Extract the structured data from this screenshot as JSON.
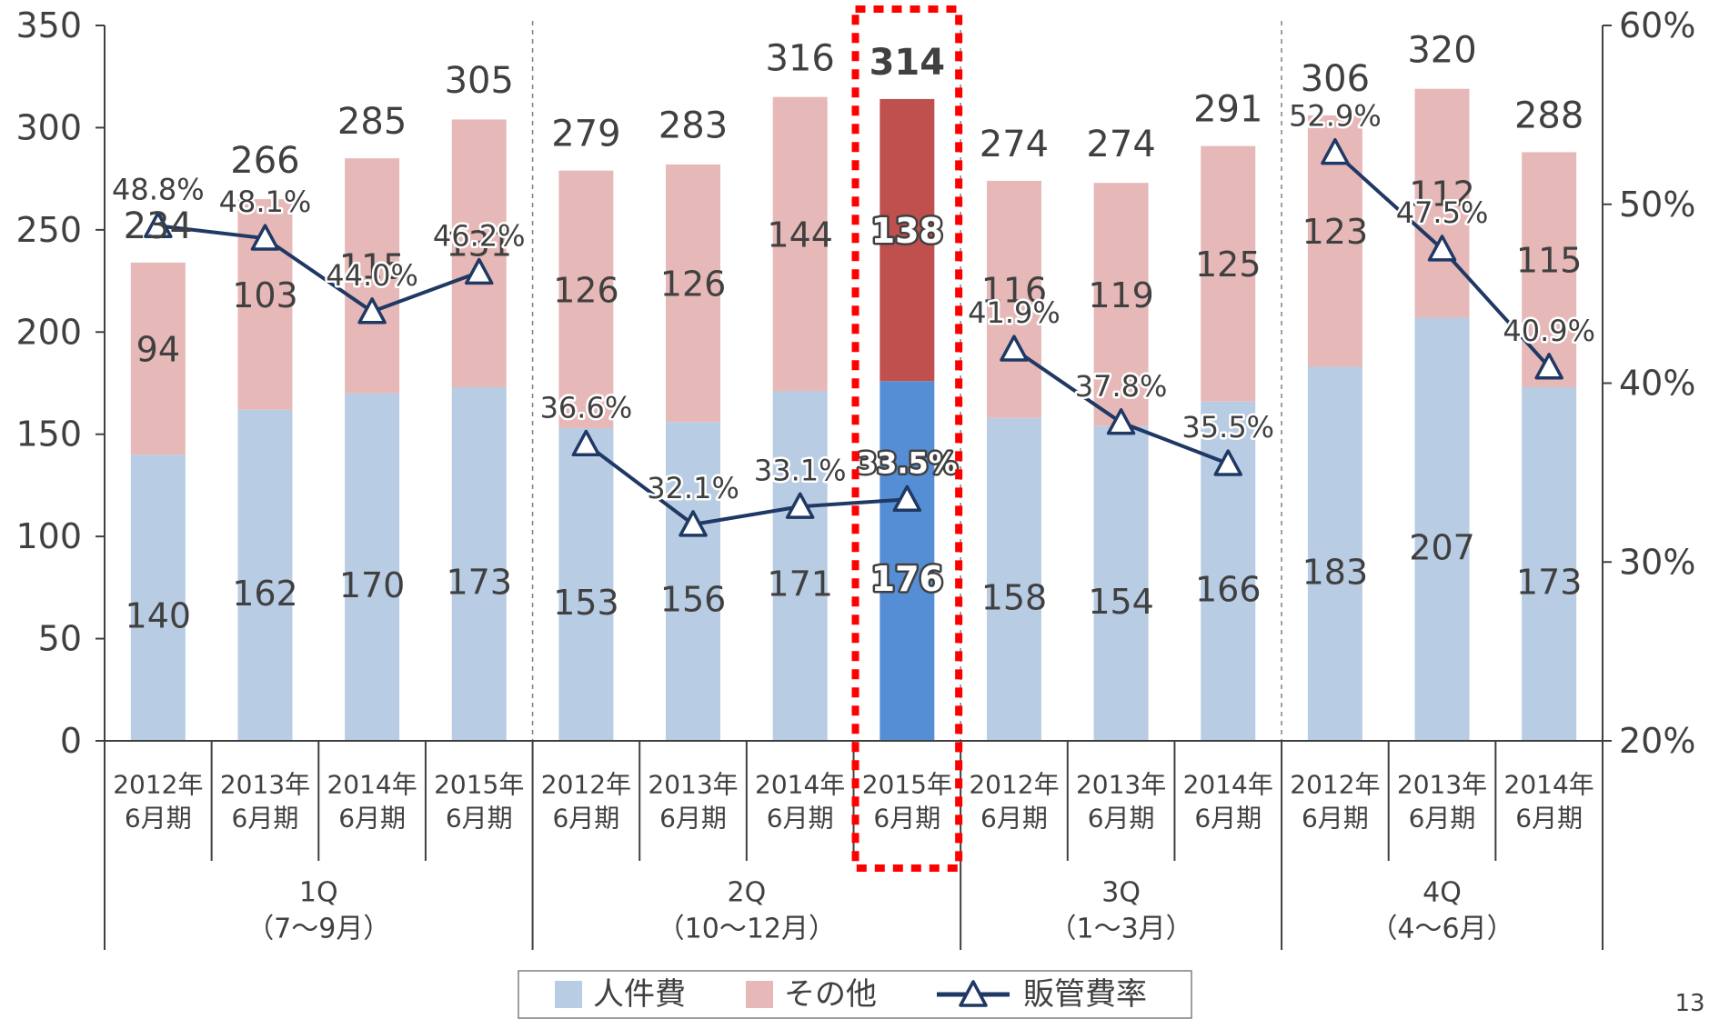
{
  "chart_data": {
    "type": "bar",
    "stacked": true,
    "quarters": [
      {
        "label": "1Q",
        "sub": "（7〜9月）"
      },
      {
        "label": "2Q",
        "sub": "（10〜12月）"
      },
      {
        "label": "3Q",
        "sub": "（1〜3月）"
      },
      {
        "label": "4Q",
        "sub": "（4〜6月）"
      }
    ],
    "categories": [
      {
        "quarter": 0,
        "line1": "2012年",
        "line2": "6月期"
      },
      {
        "quarter": 0,
        "line1": "2013年",
        "line2": "6月期"
      },
      {
        "quarter": 0,
        "line1": "2014年",
        "line2": "6月期"
      },
      {
        "quarter": 0,
        "line1": "2015年",
        "line2": "6月期"
      },
      {
        "quarter": 1,
        "line1": "2012年",
        "line2": "6月期"
      },
      {
        "quarter": 1,
        "line1": "2013年",
        "line2": "6月期"
      },
      {
        "quarter": 1,
        "line1": "2014年",
        "line2": "6月期"
      },
      {
        "quarter": 1,
        "line1": "2015年",
        "line2": "6月期"
      },
      {
        "quarter": 2,
        "line1": "2012年",
        "line2": "6月期"
      },
      {
        "quarter": 2,
        "line1": "2013年",
        "line2": "6月期"
      },
      {
        "quarter": 2,
        "line1": "2014年",
        "line2": "6月期"
      },
      {
        "quarter": 3,
        "line1": "2012年",
        "line2": "6月期"
      },
      {
        "quarter": 3,
        "line1": "2013年",
        "line2": "6月期"
      },
      {
        "quarter": 3,
        "line1": "2014年",
        "line2": "6月期"
      }
    ],
    "series": [
      {
        "name": "人件費",
        "axis": "left",
        "values": [
          140,
          162,
          170,
          173,
          153,
          156,
          171,
          176,
          158,
          154,
          166,
          183,
          207,
          173
        ]
      },
      {
        "name": "その他",
        "axis": "left",
        "values": [
          94,
          103,
          115,
          131,
          126,
          126,
          144,
          138,
          116,
          119,
          125,
          123,
          112,
          115
        ]
      },
      {
        "name": "販管費率",
        "axis": "right",
        "type": "line",
        "values": [
          48.8,
          48.1,
          44.0,
          46.2,
          36.6,
          32.1,
          33.1,
          33.5,
          41.9,
          37.8,
          35.5,
          52.9,
          47.5,
          40.9
        ]
      }
    ],
    "totals": [
      234,
      266,
      285,
      305,
      279,
      283,
      316,
      314,
      274,
      274,
      291,
      306,
      320,
      288
    ],
    "labels": {
      "people": [
        "140",
        "162",
        "170",
        "173",
        "153",
        "156",
        "171",
        "176",
        "158",
        "154",
        "166",
        "183",
        "207",
        "173"
      ],
      "other": [
        "94",
        "103",
        "115",
        "131",
        "126",
        "126",
        "144",
        "138",
        "116",
        "119",
        "125",
        "123",
        "112",
        "115"
      ],
      "totals": [
        "234",
        "266",
        "285",
        "305",
        "279",
        "283",
        "316",
        "314",
        "274",
        "274",
        "291",
        "306",
        "320",
        "288"
      ],
      "rates": [
        "48.8%",
        "48.1%",
        "44.0%",
        "46.2%",
        "36.6%",
        "32.1%",
        "33.1%",
        "33.5%",
        "41.9%",
        "37.8%",
        "35.5%",
        "52.9%",
        "47.5%",
        "40.9%"
      ]
    },
    "highlight_index": 7,
    "y_left": {
      "min": 0,
      "max": 350,
      "ticks": [
        "0",
        "50",
        "100",
        "150",
        "200",
        "250",
        "300",
        "350"
      ]
    },
    "y_right": {
      "min": 20,
      "max": 60,
      "ticks": [
        "20%",
        "30%",
        "40%",
        "50%",
        "60%"
      ]
    },
    "legend": {
      "placement": "bottom"
    },
    "colors": {
      "people": "#b8cce4",
      "other": "#e6b9b8",
      "people_highlight": "#558ed5",
      "other_highlight": "#c0504d",
      "line": "#1f3864",
      "highlight_frame": "#ff0000",
      "axis": "#404040"
    }
  },
  "page_number": "13"
}
